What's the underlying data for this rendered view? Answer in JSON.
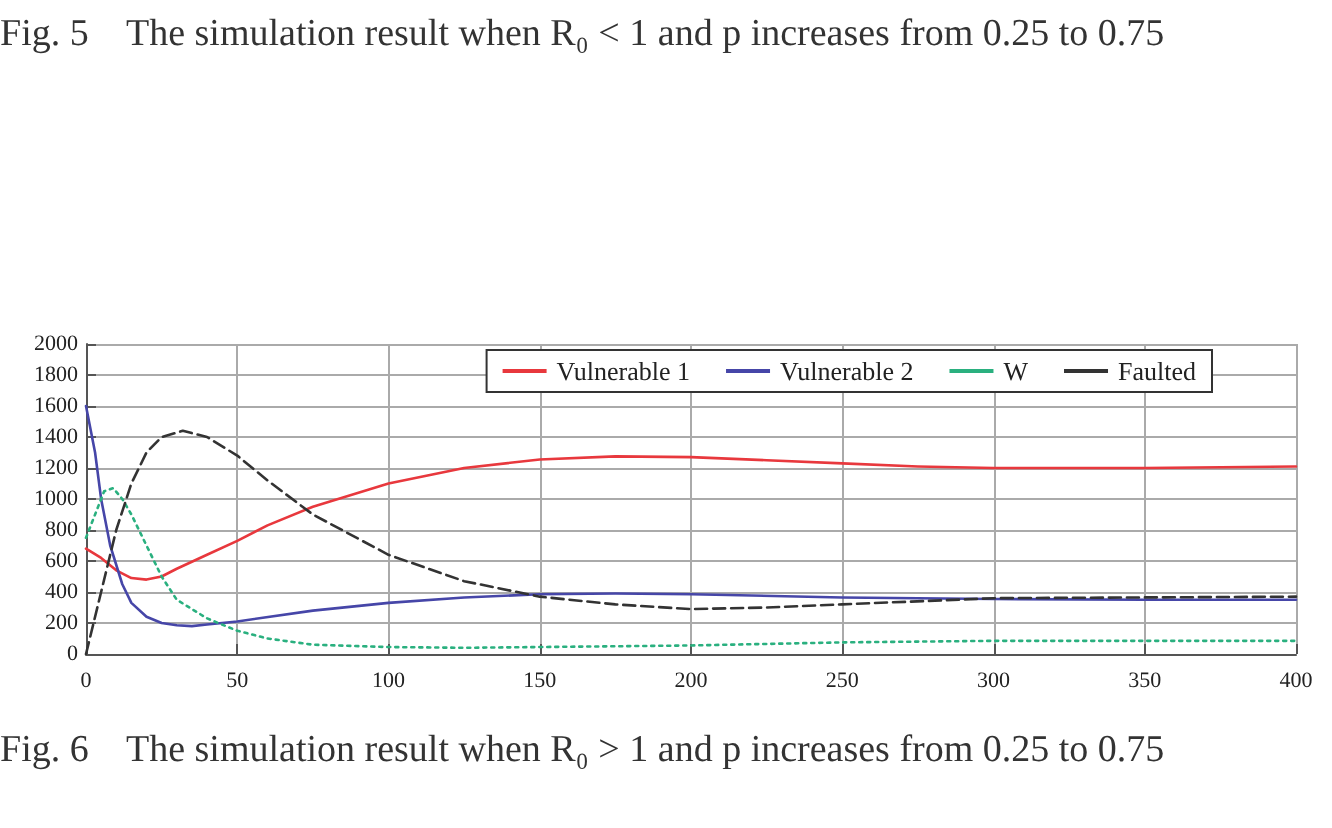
{
  "chart_data": {
    "type": "line",
    "annotations": [
      "Fig. 5    The simulation result when R₀ < 1 and p increases from 0.25 to 0.75",
      "Fig. 6    The simulation result when R₀ > 1 and p increases from 0.25 to 0.75"
    ],
    "xlim": [
      0,
      400
    ],
    "xticks": [
      0,
      50,
      100,
      150,
      200,
      250,
      300,
      350,
      400
    ],
    "ylim": [
      0,
      2000
    ],
    "yticks": [
      0,
      200,
      400,
      600,
      800,
      1000,
      1200,
      1400,
      1600,
      1800,
      2000
    ],
    "grid": true,
    "legend": "top right",
    "marker": "none",
    "series": [
      {
        "name": "Vulnerable 1",
        "color": "#e8383d",
        "line_style": "solid",
        "x": [
          0,
          5,
          10,
          15,
          20,
          25,
          30,
          40,
          50,
          60,
          75,
          100,
          125,
          150,
          175,
          200,
          225,
          250,
          275,
          300,
          350,
          400
        ],
        "values": [
          680,
          620,
          540,
          490,
          480,
          500,
          550,
          640,
          730,
          830,
          950,
          1100,
          1200,
          1255,
          1275,
          1270,
          1250,
          1230,
          1210,
          1200,
          1200,
          1210
        ]
      },
      {
        "name": "Vulnerable 2",
        "color": "#4646a8",
        "line_style": "solid",
        "x": [
          0,
          3,
          5,
          8,
          12,
          15,
          20,
          25,
          30,
          35,
          40,
          50,
          75,
          100,
          125,
          150,
          175,
          200,
          250,
          300,
          350,
          400
        ],
        "values": [
          1600,
          1300,
          1000,
          700,
          450,
          330,
          240,
          200,
          185,
          180,
          190,
          210,
          280,
          330,
          365,
          385,
          390,
          385,
          365,
          355,
          350,
          350
        ]
      },
      {
        "name": "W",
        "color": "#2ab07f",
        "line_style": "dotted",
        "x": [
          0,
          3,
          6,
          9,
          12,
          15,
          20,
          25,
          30,
          40,
          50,
          60,
          75,
          100,
          125,
          150,
          200,
          250,
          300,
          350,
          400
        ],
        "values": [
          750,
          900,
          1050,
          1070,
          1000,
          900,
          700,
          500,
          350,
          230,
          150,
          100,
          60,
          45,
          40,
          45,
          55,
          75,
          85,
          85,
          85
        ]
      },
      {
        "name": "Faulted",
        "color": "#333333",
        "line_style": "dashed",
        "x": [
          0,
          5,
          10,
          15,
          20,
          25,
          32,
          40,
          50,
          60,
          75,
          100,
          125,
          150,
          175,
          200,
          225,
          250,
          300,
          350,
          400
        ],
        "values": [
          0,
          400,
          800,
          1100,
          1300,
          1400,
          1440,
          1400,
          1280,
          1120,
          900,
          640,
          470,
          370,
          320,
          290,
          300,
          320,
          360,
          365,
          370
        ]
      }
    ]
  }
}
